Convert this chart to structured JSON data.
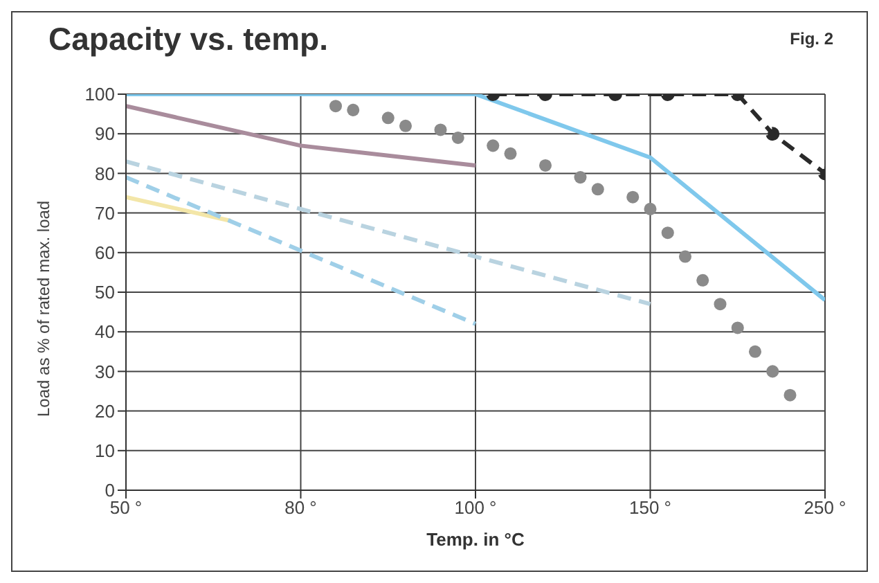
{
  "chart_data": {
    "type": "line",
    "title": "Capacity vs. temp.",
    "annotations": [
      "Fig. 2"
    ],
    "xlabel": "Temp. in °C",
    "ylabel": "Load as % of rated max. load",
    "categories": [
      "50 °",
      null,
      null,
      null,
      null,
      null,
      null,
      null,
      null,
      null,
      "80 °",
      null,
      null,
      null,
      null,
      null,
      null,
      null,
      null,
      null,
      "100 °",
      null,
      null,
      null,
      null,
      null,
      null,
      null,
      null,
      null,
      "150 °",
      null,
      null,
      null,
      null,
      null,
      null,
      null,
      null,
      null,
      "250 °"
    ],
    "ylim": [
      0,
      100
    ],
    "yticks": [
      0,
      10,
      20,
      30,
      40,
      50,
      60,
      70,
      80,
      90,
      100
    ],
    "grid": true,
    "legend": false,
    "series": [
      {
        "color": "#f3e6a8",
        "line_style": "solid",
        "marker": "none",
        "values": [
          74,
          null,
          null,
          null,
          null,
          null,
          68,
          null,
          null,
          null,
          null,
          null,
          null,
          null,
          null,
          null,
          null,
          null,
          null,
          null,
          null,
          null,
          null,
          null,
          null,
          null,
          null,
          null,
          null,
          null,
          null,
          null,
          null,
          null,
          null,
          null,
          null,
          null,
          null,
          null,
          null
        ]
      },
      {
        "color": "#b9d3e0",
        "line_style": "dashed",
        "marker": "none",
        "values": [
          83,
          null,
          null,
          null,
          null,
          null,
          null,
          null,
          null,
          null,
          null,
          null,
          null,
          null,
          null,
          null,
          null,
          null,
          null,
          null,
          null,
          null,
          null,
          null,
          null,
          null,
          null,
          null,
          null,
          null,
          47,
          null,
          null,
          null,
          null,
          null,
          null,
          null,
          null,
          null,
          null
        ]
      },
      {
        "color": "#9fcfe8",
        "line_style": "dashed",
        "marker": "none",
        "values": [
          79,
          null,
          null,
          null,
          null,
          null,
          null,
          null,
          null,
          null,
          null,
          null,
          null,
          null,
          null,
          null,
          null,
          null,
          null,
          null,
          42,
          null,
          null,
          null,
          null,
          null,
          null,
          null,
          null,
          null,
          null,
          null,
          null,
          null,
          null,
          null,
          null,
          null,
          null,
          null,
          null
        ]
      },
      {
        "color": "#a98c9c",
        "line_style": "solid",
        "marker": "none",
        "values": [
          97,
          null,
          null,
          null,
          null,
          null,
          null,
          null,
          null,
          null,
          87,
          null,
          null,
          null,
          null,
          null,
          null,
          null,
          null,
          null,
          82,
          null,
          null,
          null,
          null,
          null,
          null,
          null,
          null,
          null,
          null,
          null,
          null,
          null,
          null,
          null,
          null,
          null,
          null,
          null,
          null
        ]
      },
      {
        "type": "scatter",
        "color": "#8a8a8a",
        "marker": "circle",
        "values": [
          null,
          null,
          null,
          null,
          null,
          null,
          null,
          null,
          null,
          null,
          null,
          null,
          97,
          96,
          null,
          94,
          92,
          null,
          91,
          89,
          null,
          87,
          85,
          null,
          82,
          null,
          79,
          76,
          null,
          74,
          71,
          65,
          59,
          53,
          47,
          41,
          35,
          30,
          24,
          null,
          null
        ]
      },
      {
        "color": "#7fc8ec",
        "line_style": "solid",
        "marker": "none",
        "values": [
          100,
          null,
          null,
          null,
          null,
          null,
          null,
          null,
          null,
          null,
          null,
          null,
          null,
          null,
          null,
          null,
          null,
          null,
          null,
          null,
          100,
          null,
          null,
          null,
          null,
          null,
          null,
          null,
          null,
          null,
          84,
          null,
          null,
          null,
          null,
          null,
          null,
          null,
          null,
          null,
          48
        ]
      },
      {
        "color": "#2a2a2a",
        "line_style": "dashed",
        "marker": "circle",
        "values": [
          null,
          null,
          null,
          null,
          null,
          null,
          null,
          null,
          null,
          null,
          null,
          null,
          null,
          null,
          null,
          null,
          null,
          null,
          null,
          null,
          null,
          100,
          null,
          null,
          100,
          null,
          null,
          null,
          100,
          null,
          null,
          100,
          null,
          null,
          null,
          100,
          null,
          90,
          null,
          null,
          80
        ]
      }
    ]
  }
}
